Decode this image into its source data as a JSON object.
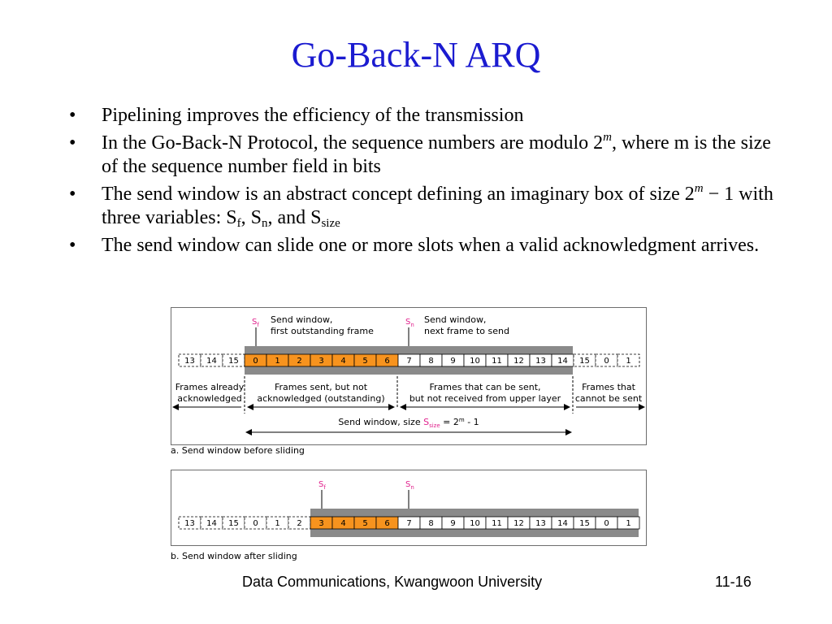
{
  "slide": {
    "title": "Go-Back-N ARQ",
    "footer_left": "Data Communications, Kwangwoon University",
    "footer_right": "11-16"
  },
  "bullets": [
    {
      "text": "Pipelining improves the efficiency of the transmission"
    },
    {
      "pre": "In the Go-Back-N Protocol, the sequence numbers are modulo 2",
      "sup": "m",
      "post": ", where m is the size of the sequence number field in bits"
    },
    {
      "pre": "The send window is an abstract concept defining an imaginary box of size 2",
      "sup": "m",
      "mid": " − 1 with three variables: S",
      "sub1": "f",
      "mid2": ", S",
      "sub2": "n",
      "mid3": ", and S",
      "sub3": "size"
    },
    {
      "text": "The send window can slide one or more slots when a valid acknowledgment arrives."
    }
  ],
  "figure": {
    "colors": {
      "outstanding": "#f7931e",
      "bar": "#8a8a8a",
      "pointer_label": "#e0208c"
    },
    "panel_a": {
      "caption": "a. Send window before sliding",
      "sf_label": "S",
      "sf_sub": "f",
      "sn_label": "S",
      "sn_sub": "n",
      "sf_desc_1": "Send window,",
      "sf_desc_2": "first outstanding frame",
      "sn_desc_1": "Send window,",
      "sn_desc_2": "next frame to send",
      "left_dashed": [
        "13",
        "14",
        "15"
      ],
      "outstanding": [
        "0",
        "1",
        "2",
        "3",
        "4",
        "5",
        "6"
      ],
      "sendable": [
        "7",
        "8",
        "9",
        "10",
        "11",
        "12",
        "13",
        "14"
      ],
      "right_dashed": [
        "15",
        "0",
        "1"
      ],
      "region_ack_1": "Frames already",
      "region_ack_2": "acknowledged",
      "region_out_1": "Frames sent, but not",
      "region_out_2": "acknowledged (outstanding)",
      "region_can_1": "Frames that can be sent,",
      "region_can_2": "but not received from upper layer",
      "region_cannot_1": "Frames that",
      "region_cannot_2": "cannot be sent",
      "size_pre": "Send window, size ",
      "size_s": "S",
      "size_sub": "size",
      "size_eq": " = 2",
      "size_sup": "m",
      "size_post": " - 1"
    },
    "panel_b": {
      "caption": "b. Send window after sliding",
      "sf_label": "S",
      "sf_sub": "f",
      "sn_label": "S",
      "sn_sub": "n",
      "left_dashed": [
        "13",
        "14",
        "15",
        "0",
        "1",
        "2"
      ],
      "outstanding": [
        "3",
        "4",
        "5",
        "6"
      ],
      "sendable": [
        "7",
        "8",
        "9",
        "10",
        "11",
        "12",
        "13",
        "14",
        "15",
        "0",
        "1"
      ]
    }
  }
}
